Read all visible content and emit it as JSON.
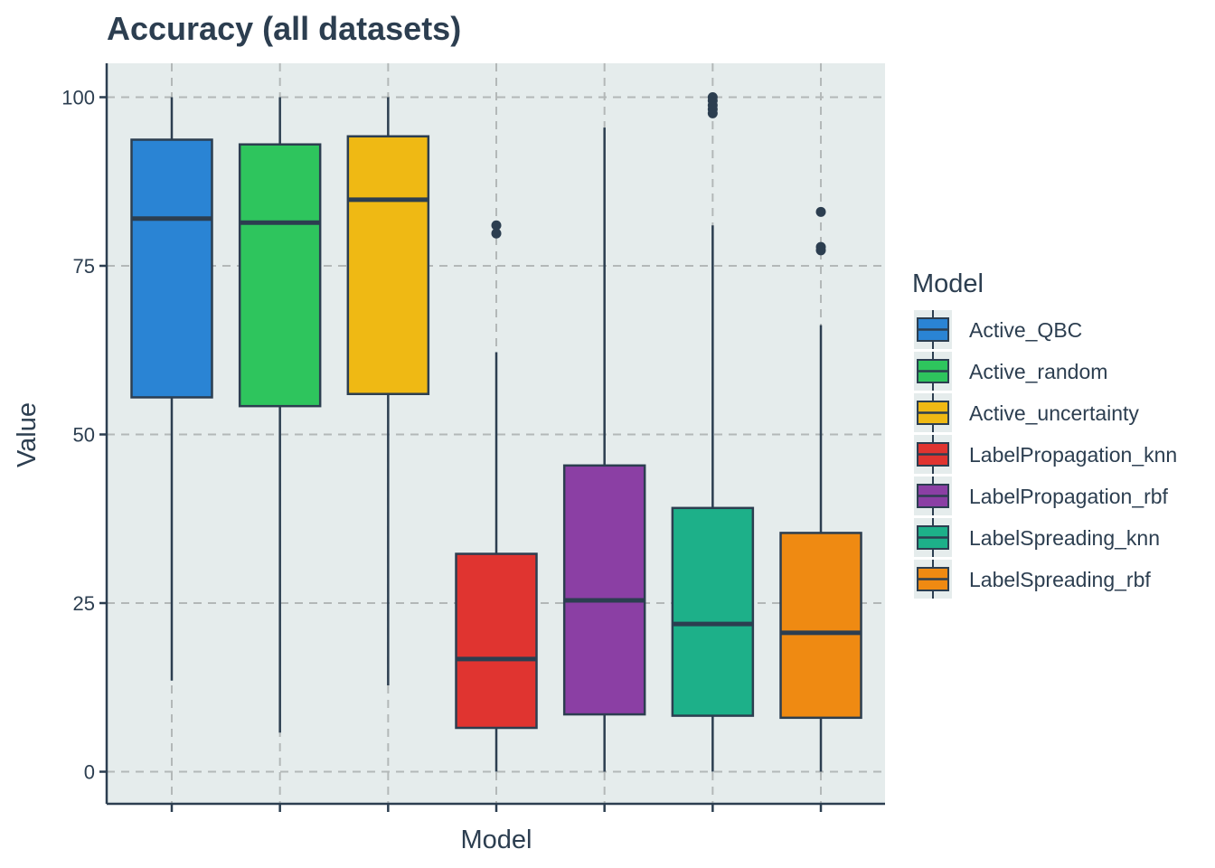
{
  "chart_data": {
    "type": "box",
    "title": "Accuracy (all datasets)",
    "xlabel": "Model",
    "ylabel": "Value",
    "ylim": [
      -5,
      105
    ],
    "yticks": [
      0,
      25,
      50,
      75,
      100
    ],
    "grid": true,
    "grid_style": "dashed",
    "panel_background": "#e5ecec",
    "grid_color": "#b3b8b8",
    "outline_color": "#2c3e50",
    "legend_title": "Model",
    "legend_position": "right",
    "series": [
      {
        "name": "Active_QBC",
        "color": "#2a84d4",
        "whisker_low": 13.5,
        "q1": 55.5,
        "median": 82,
        "q3": 93.7,
        "whisker_high": 100,
        "outliers": []
      },
      {
        "name": "Active_random",
        "color": "#2ec55d",
        "whisker_low": 5.8,
        "q1": 54.2,
        "median": 81.4,
        "q3": 93,
        "whisker_high": 100,
        "outliers": []
      },
      {
        "name": "Active_uncertainty",
        "color": "#efb914",
        "whisker_low": 12.8,
        "q1": 56,
        "median": 84.8,
        "q3": 94.2,
        "whisker_high": 100,
        "outliers": []
      },
      {
        "name": "LabelPropagation_knn",
        "color": "#e03430",
        "whisker_low": 0,
        "q1": 6.5,
        "median": 16.7,
        "q3": 32.3,
        "whisker_high": 62.2,
        "outliers": [
          79.8,
          81
        ]
      },
      {
        "name": "LabelPropagation_rbf",
        "color": "#8b3fa4",
        "whisker_low": 0,
        "q1": 8.5,
        "median": 25.4,
        "q3": 45.4,
        "whisker_high": 95.5,
        "outliers": []
      },
      {
        "name": "LabelSpreading_knn",
        "color": "#1db089",
        "whisker_low": 0,
        "q1": 8.3,
        "median": 21.9,
        "q3": 39.1,
        "whisker_high": 81,
        "outliers": [
          97.6,
          98.2,
          98.8,
          99.5,
          100
        ]
      },
      {
        "name": "LabelSpreading_rbf",
        "color": "#ef8a12",
        "whisker_low": 0,
        "q1": 8,
        "median": 20.6,
        "q3": 35.4,
        "whisker_high": 66.2,
        "outliers": [
          77.3,
          77.8,
          83
        ]
      }
    ]
  }
}
